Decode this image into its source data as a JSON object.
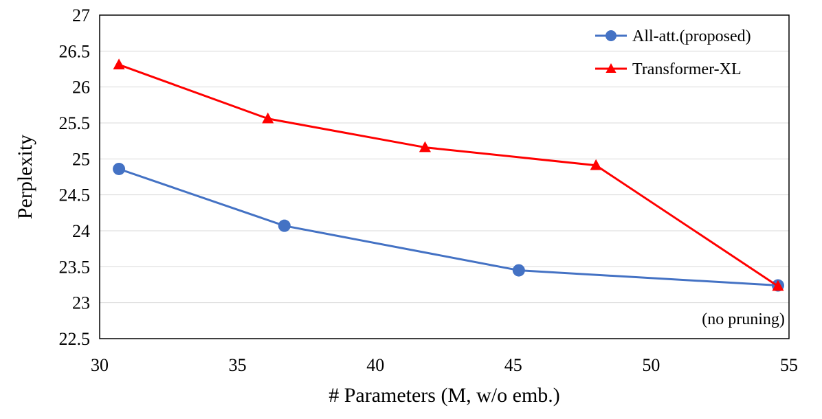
{
  "chart_data": {
    "type": "line",
    "xlabel": "# Parameters (M, w/o emb.)",
    "ylabel": "Perplexity",
    "xlim": [
      30,
      55
    ],
    "ylim": [
      22.5,
      27
    ],
    "x_ticks": [
      30,
      35,
      40,
      45,
      50,
      55
    ],
    "y_ticks": [
      22.5,
      23,
      23.5,
      24,
      24.5,
      25,
      25.5,
      26,
      26.5,
      27
    ],
    "grid": "horizontal",
    "legend_position": "top-right",
    "series": [
      {
        "name": "All-att.(proposed)",
        "color": "#4472C4",
        "marker": "circle",
        "x": [
          30.7,
          36.7,
          45.2,
          54.6
        ],
        "y": [
          24.86,
          24.07,
          23.45,
          23.24
        ]
      },
      {
        "name": "Transformer-XL",
        "color": "#FF0000",
        "marker": "triangle",
        "x": [
          30.7,
          36.1,
          41.8,
          48.0,
          54.6
        ],
        "y": [
          26.31,
          25.56,
          25.16,
          24.91,
          23.23
        ]
      }
    ],
    "annotations": [
      {
        "text": "(no pruning)",
        "x": 54.6,
        "y": 22.93
      }
    ]
  }
}
